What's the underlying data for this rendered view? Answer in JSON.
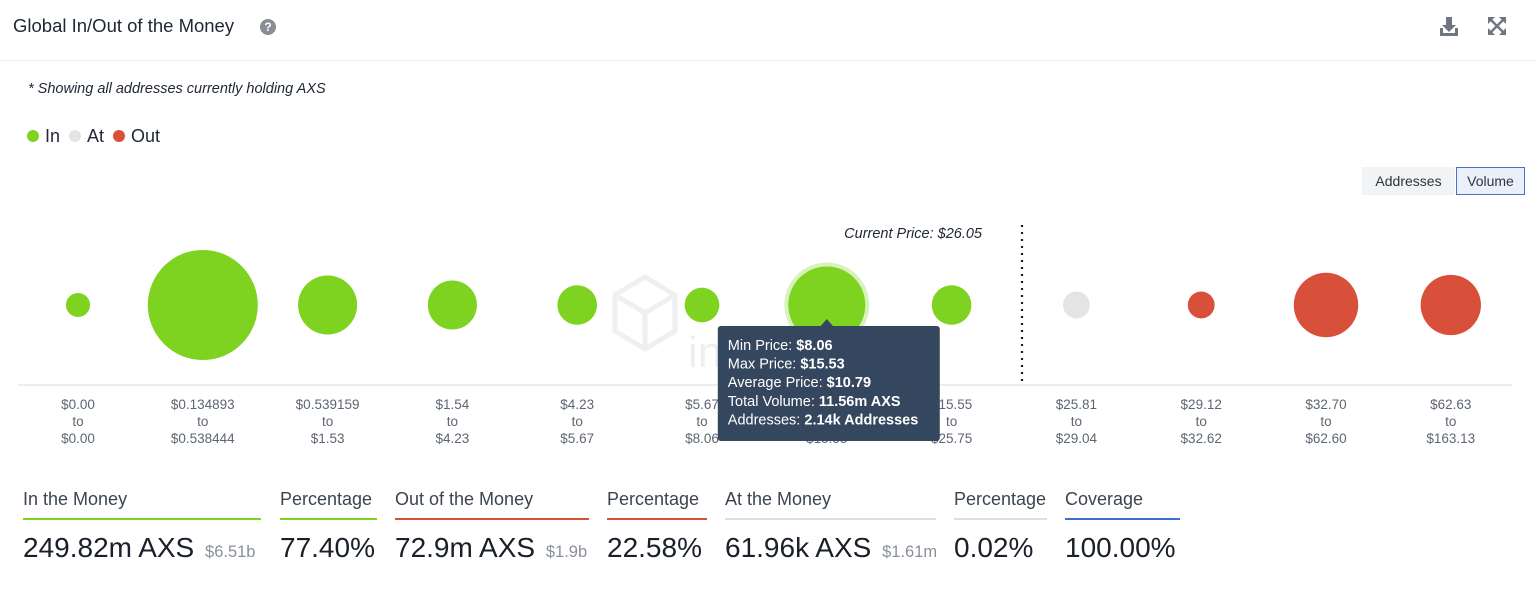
{
  "header": {
    "title": "Global In/Out of the Money",
    "help_icon": "question-circle-icon",
    "download_icon": "download-icon",
    "expand_icon": "expand-icon"
  },
  "note": "* Showing all addresses currently holding AXS",
  "legend": [
    {
      "label": "In",
      "color": "#7ed321"
    },
    {
      "label": "At",
      "color": "#e4e4e4"
    },
    {
      "label": "Out",
      "color": "#d9503a"
    }
  ],
  "toggle": {
    "addresses_label": "Addresses",
    "volume_label": "Volume",
    "selected": "Volume"
  },
  "chart_data": {
    "type": "scatter",
    "title": "Global In/Out of the Money",
    "series": [
      {
        "name": "In",
        "color": "#7ed321"
      },
      {
        "name": "At",
        "color": "#e4e4e4"
      },
      {
        "name": "Out",
        "color": "#d9503a"
      }
    ],
    "current_price_label": "Current Price: $26.05",
    "buckets": [
      {
        "from": "$0.00",
        "to": "$0.00",
        "status": "in",
        "volume_m": 1.13
      },
      {
        "from": "$0.134893",
        "to": "$0.538444",
        "status": "in",
        "volume_m": 23.6
      },
      {
        "from": "$0.539159",
        "to": "$1.53",
        "status": "in",
        "volume_m": 6.8
      },
      {
        "from": "$1.54",
        "to": "$4.23",
        "status": "in",
        "volume_m": 4.7
      },
      {
        "from": "$4.23",
        "to": "$5.67",
        "status": "in",
        "volume_m": 3.06
      },
      {
        "from": "$5.67",
        "to": "$8.06",
        "status": "in",
        "volume_m": 2.35
      },
      {
        "from": "$8.06",
        "to": "$15.53",
        "status": "in",
        "volume_m": 11.56
      },
      {
        "from": "$15.55",
        "to": "$25.75",
        "status": "in",
        "volume_m": 3.06
      },
      {
        "from": "$25.81",
        "to": "$29.04",
        "status": "at",
        "volume_m": 1.41
      },
      {
        "from": "$29.12",
        "to": "$32.62",
        "status": "out",
        "volume_m": 1.41
      },
      {
        "from": "$32.70",
        "to": "$62.60",
        "status": "out",
        "volume_m": 8.1
      },
      {
        "from": "$62.63",
        "to": "$163.13",
        "status": "out",
        "volume_m": 7.1
      }
    ],
    "to_word": "to",
    "tooltip": {
      "bucket_index": 6,
      "lines": [
        {
          "label": "Min Price: ",
          "value": "$8.06"
        },
        {
          "label": "Max Price: ",
          "value": "$15.53"
        },
        {
          "label": "Average Price: ",
          "value": "$10.79"
        },
        {
          "label": "Total Volume: ",
          "value": "11.56m AXS"
        },
        {
          "label": "Addresses: ",
          "value": "2.14k Addresses"
        }
      ]
    },
    "watermark": "intotheblock"
  },
  "stats": [
    {
      "label": "In the Money",
      "value": "249.82m AXS",
      "sub": "$6.51b",
      "color": "#7ed321"
    },
    {
      "label": "Percentage",
      "value": "77.40%",
      "sub": "",
      "color": "#7ed321"
    },
    {
      "label": "Out of the Money",
      "value": "72.9m AXS",
      "sub": "$1.9b",
      "color": "#d9503a"
    },
    {
      "label": "Percentage",
      "value": "22.58%",
      "sub": "",
      "color": "#d9503a"
    },
    {
      "label": "At the Money",
      "value": "61.96k AXS",
      "sub": "$1.61m",
      "color": "#dedede"
    },
    {
      "label": "Percentage",
      "value": "0.02%",
      "sub": "",
      "color": "#dedede"
    },
    {
      "label": "Coverage",
      "value": "100.00%",
      "sub": "",
      "color": "#3d6fd0"
    }
  ]
}
